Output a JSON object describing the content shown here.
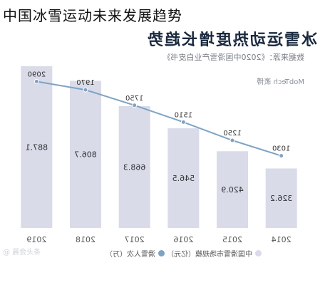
{
  "page": {
    "title": "中国冰雪运动未来发展趋势"
  },
  "colors": {
    "bar": "#d9dbe9",
    "line": "#7fa3c4",
    "label": "#333333",
    "title": "#1b2a3f"
  },
  "chart_data": {
    "type": "bar",
    "title": "冰雪运动热度增长趋势",
    "source": "数据来源：",
    "source_detail": "《2020中国滑雪产业白皮书》",
    "source_company": "MobTech 袤博",
    "categories": [
      "2014",
      "2015",
      "2016",
      "2017",
      "2018",
      "2019"
    ],
    "series": [
      {
        "name": "中国滑雪市场规模（亿元）",
        "type": "bar",
        "values": [
          326.2,
          420.9,
          546.5,
          668.3,
          806.7,
          887.1
        ],
        "labels": [
          "326.2",
          "420.9",
          "546.5",
          "668.3",
          "806.7",
          "887.1"
        ]
      },
      {
        "name": "滑雪人次（万）",
        "type": "line",
        "values": [
          1030,
          1250,
          1510,
          1750,
          1970,
          2090
        ],
        "labels": [
          "1030",
          "1250",
          "1510",
          "1750",
          "1970",
          "2090"
        ]
      }
    ],
    "ylim_bar": [
      0,
      1000
    ],
    "ylim_line": [
      0,
      2500
    ],
    "grid": false,
    "legend_position": "bottom",
    "watermark": "@ 晨会头条"
  }
}
